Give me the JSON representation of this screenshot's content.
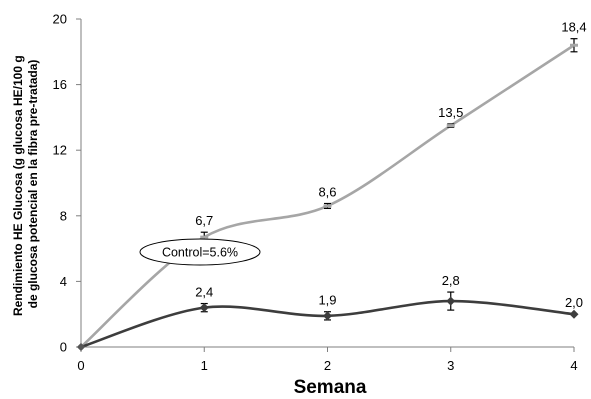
{
  "chart_data": {
    "type": "line",
    "xlabel": "Semana",
    "ylabel_lines": [
      "Rendimiento HE Glucosa (g glucosa HE/100 g",
      "de glucosa potencial en la fibra pre-tratada)"
    ],
    "x": [
      0,
      1,
      2,
      3,
      4
    ],
    "xlim": [
      0,
      4
    ],
    "ylim": [
      0,
      20
    ],
    "x_ticks": [
      "0",
      "1",
      "2",
      "3",
      "4"
    ],
    "y_ticks": [
      "0",
      "4",
      "8",
      "12",
      "16",
      "20"
    ],
    "grid": false,
    "legend": "none",
    "callout_text": "Control=5.6%",
    "series": [
      {
        "values": [
          0,
          6.7,
          8.6,
          13.5,
          18.4
        ],
        "errors": [
          0,
          0.3,
          0.15,
          0.1,
          0.4
        ],
        "labels": [
          "",
          "6,7",
          "8,6",
          "13,5",
          "18,4"
        ],
        "color": "#a6a6a6",
        "marker": "dash"
      },
      {
        "values": [
          0,
          2.4,
          1.9,
          2.8,
          2.0
        ],
        "errors": [
          0,
          0.25,
          0.25,
          0.55,
          0
        ],
        "labels": [
          "",
          "2,4",
          "1,9",
          "2,8",
          "2,0"
        ],
        "color": "#3d3d3d",
        "marker": "diamond"
      }
    ]
  }
}
